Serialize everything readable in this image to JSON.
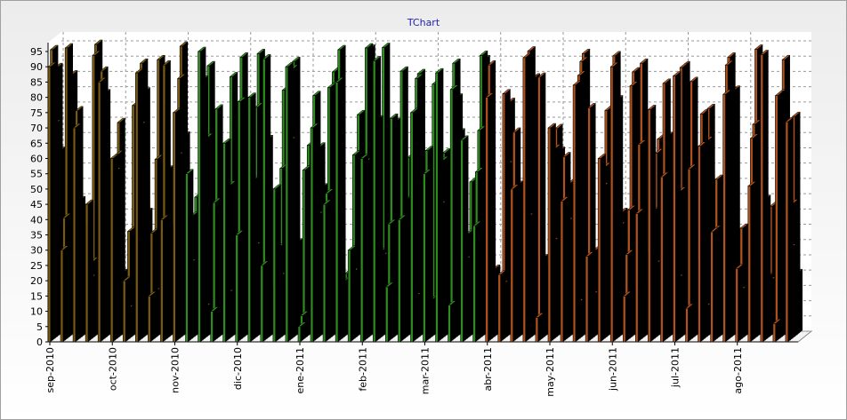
{
  "window": {
    "title": "TChart"
  },
  "colors": {
    "green": "#2e8b1e",
    "green_dark": "#0a3a0a",
    "olive": "#7a5a10",
    "orange": "#b0521c",
    "black_back": "#000000",
    "title_blue": "#1f1fb0",
    "grid": "#9a9a9a"
  },
  "chart_data": {
    "type": "bar",
    "title": "TChart",
    "xlabel": "",
    "ylabel": "",
    "ylim": [
      0,
      100
    ],
    "yticks": [
      0,
      5,
      10,
      15,
      20,
      25,
      30,
      35,
      40,
      45,
      50,
      55,
      60,
      65,
      70,
      75,
      80,
      85,
      90,
      95
    ],
    "grid": true,
    "three_d": true,
    "x_ticks": [
      "sep-2010",
      "oct-2010",
      "nov-2010",
      "dic-2010",
      "ene-2011",
      "feb-2011",
      "mar-2011",
      "abr-2011",
      "may-2011",
      "jun-2011",
      "jul-2011",
      "ago-2011"
    ],
    "series": [
      {
        "values": [
          90,
          30,
          70,
          45,
          85,
          60,
          20,
          88,
          15,
          40,
          75,
          55,
          95,
          10,
          65,
          35,
          80,
          25,
          50,
          90,
          5,
          70,
          45,
          85,
          30,
          60,
          92,
          18,
          40,
          75,
          55,
          88,
          12,
          66,
          38,
          80,
          22,
          50,
          93,
          8,
          70,
          46,
          84,
          28,
          60,
          90,
          15,
          42,
          76,
          54,
          87,
          11,
          64,
          36,
          81,
          24,
          51,
          94,
          6,
          72
        ]
      },
      {
        "values": [
          95,
          40,
          75,
          20,
          88,
          55,
          10,
          70,
          35,
          90,
          60,
          25,
          85,
          45,
          15,
          78,
          52,
          92,
          30,
          65,
          8,
          80,
          48,
          95,
          22,
          58,
          72,
          38,
          88,
          14,
          62,
          44,
          82,
          26,
          55,
          90,
          18,
          68,
          40,
          86,
          32,
          60,
          12,
          76,
          50,
          93,
          28,
          64,
          42,
          84,
          20,
          56,
          74,
          36,
          90,
          16,
          66,
          46,
          80,
          30
        ]
      },
      {
        "values": [
          70,
          95,
          45,
          25,
          80,
          60,
          35,
          90,
          15,
          55,
          85,
          40,
          10,
          75,
          50,
          92,
          30,
          65,
          20,
          88,
          55,
          40,
          82,
          18,
          60,
          95,
          28,
          72,
          45,
          85,
          12,
          58,
          90,
          34,
          68,
          22,
          80,
          50,
          94,
          26,
          62,
          38,
          86,
          14,
          56,
          78,
          42,
          90,
          24,
          66,
          48,
          84,
          10,
          52,
          92,
          36,
          70,
          20,
          80,
          44
        ]
      },
      {
        "values": [
          88,
          50,
          25,
          92,
          40,
          70,
          15,
          80,
          58,
          35,
          95,
          20,
          65,
          45,
          85,
          30,
          75,
          10,
          55,
          90,
          38,
          62,
          82,
          18,
          48,
          94,
          26,
          70,
          44,
          86,
          12,
          60,
          78,
          32,
          92,
          22,
          56,
          40,
          84,
          16,
          68,
          50,
          90,
          28,
          74,
          36,
          82,
          14,
          60,
          46,
          88,
          24,
          64,
          42,
          80,
          30,
          94,
          18,
          52,
          72
        ]
      },
      {
        "values": [
          60,
          85,
          35,
          95,
          50,
          20,
          75,
          40,
          90,
          10,
          65,
          45,
          88,
          25,
          70,
          55,
          92,
          15,
          80,
          30,
          62,
          48,
          86,
          20,
          72,
          38,
          94,
          12,
          58,
          44,
          82,
          28,
          66,
          50,
          90,
          18,
          76,
          34,
          84,
          22,
          60,
          46,
          92,
          16,
          70,
          40,
          86,
          26,
          64,
          52,
          88,
          14,
          74,
          36,
          80,
          30,
          56,
          42,
          90,
          20
        ]
      }
    ]
  }
}
